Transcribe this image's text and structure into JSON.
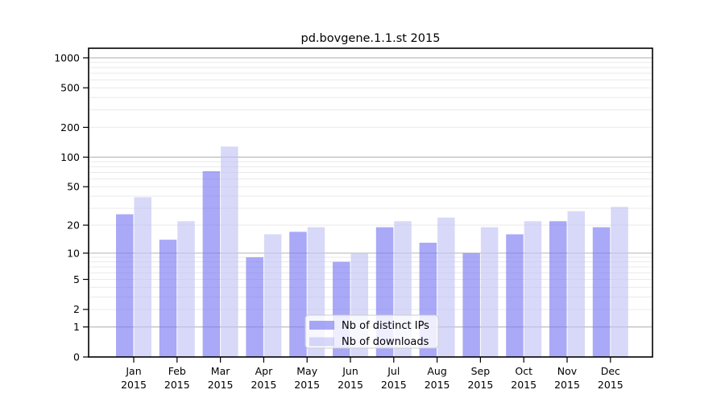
{
  "chart_data": {
    "type": "bar",
    "title": "pd.bovgene.1.1.st 2015",
    "categories": [
      "Jan 2015",
      "Feb 2015",
      "Mar 2015",
      "Apr 2015",
      "May 2015",
      "Jun 2015",
      "Jul 2015",
      "Aug 2015",
      "Sep 2015",
      "Oct 2015",
      "Nov 2015",
      "Dec 2015"
    ],
    "series": [
      {
        "name": "Nb of distinct IPs",
        "color": "#7b7bf2",
        "opacity": 0.65,
        "values": [
          26,
          14,
          72,
          9,
          17,
          8,
          19,
          13,
          10,
          16,
          22,
          19
        ]
      },
      {
        "name": "Nb of downloads",
        "color": "#c3c3f4",
        "opacity": 0.65,
        "values": [
          39,
          22,
          128,
          16,
          19,
          10,
          22,
          24,
          19,
          22,
          28,
          31
        ]
      }
    ],
    "yscale": "log10(1+v)",
    "ylim": [
      0,
      1400
    ],
    "yticks": [
      0,
      1,
      2,
      5,
      10,
      20,
      50,
      100,
      200,
      500,
      1000
    ],
    "major_gridline_values": [
      1,
      10,
      100,
      1000
    ],
    "grid": true,
    "legend_position": "lower-center",
    "colors": {
      "major_gridline": "#b5b5b5",
      "minor_gridline": "#e9e9e9",
      "spine": "#000000",
      "legend_border": "#cccccc",
      "legend_background": "#ffffff"
    }
  }
}
